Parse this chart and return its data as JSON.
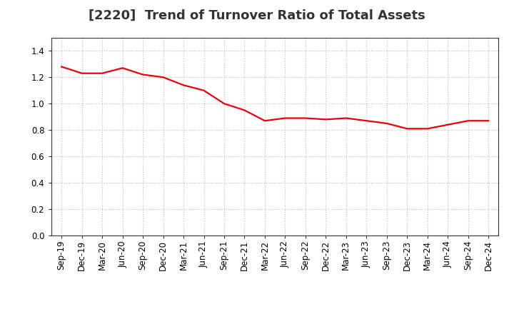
{
  "title": "[2220]  Trend of Turnover Ratio of Total Assets",
  "line_color": "#e8000d",
  "background_color": "#ffffff",
  "grid_color": "#bbbbbb",
  "x_labels": [
    "Sep-19",
    "Dec-19",
    "Mar-20",
    "Jun-20",
    "Sep-20",
    "Dec-20",
    "Mar-21",
    "Jun-21",
    "Sep-21",
    "Dec-21",
    "Mar-22",
    "Jun-22",
    "Sep-22",
    "Dec-22",
    "Mar-23",
    "Jun-23",
    "Sep-23",
    "Dec-23",
    "Mar-24",
    "Jun-24",
    "Sep-24",
    "Dec-24"
  ],
  "y_values": [
    1.28,
    1.23,
    1.23,
    1.27,
    1.22,
    1.2,
    1.14,
    1.1,
    1.0,
    0.95,
    0.87,
    0.89,
    0.89,
    0.88,
    0.89,
    0.87,
    0.85,
    0.81,
    0.81,
    0.84,
    0.87,
    0.87
  ],
  "ylim": [
    0.0,
    1.5
  ],
  "yticks": [
    0.0,
    0.2,
    0.4,
    0.6,
    0.8,
    1.0,
    1.2,
    1.4
  ],
  "title_fontsize": 13,
  "tick_fontsize": 8.5,
  "line_width": 1.6
}
